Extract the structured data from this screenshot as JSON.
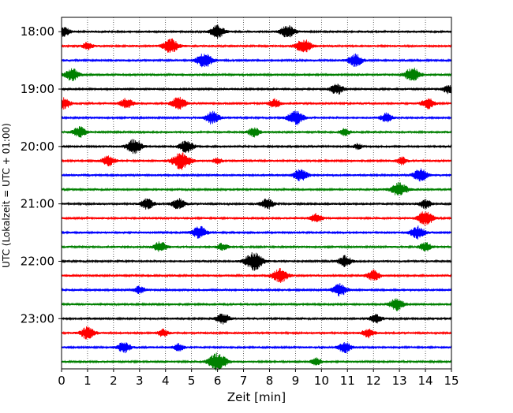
{
  "chart_data": {
    "type": "line",
    "title": "",
    "xlabel": "Zeit  [min]",
    "ylabel": "UTC (Lokalzeit = UTC + 01:00)",
    "xlim": [
      0,
      15
    ],
    "x_ticks": [
      "0",
      "1",
      "2",
      "3",
      "4",
      "5",
      "6",
      "7",
      "8",
      "9",
      "10",
      "11",
      "12",
      "13",
      "14",
      "15"
    ],
    "y_tick_labels": [
      "18:00",
      "19:00",
      "20:00",
      "21:00",
      "22:00",
      "23:00"
    ],
    "grid": "vertical dotted",
    "trace_colors": [
      "#000000",
      "#ff0000",
      "#0000ff",
      "#008000"
    ],
    "traces": [
      {
        "start": "18:00",
        "events": [
          [
            0.1,
            0.5
          ],
          [
            6.0,
            0.7
          ],
          [
            8.7,
            0.7
          ]
        ]
      },
      {
        "start": "18:15",
        "events": [
          [
            1.0,
            0.4
          ],
          [
            4.2,
            0.8
          ],
          [
            9.3,
            0.8
          ]
        ]
      },
      {
        "start": "18:30",
        "events": [
          [
            5.5,
            0.8
          ],
          [
            11.3,
            0.7
          ]
        ]
      },
      {
        "start": "18:45",
        "events": [
          [
            0.4,
            0.7
          ],
          [
            13.5,
            0.8
          ]
        ]
      },
      {
        "start": "19:00",
        "events": [
          [
            10.6,
            0.6
          ],
          [
            14.9,
            0.5
          ]
        ]
      },
      {
        "start": "19:15",
        "events": [
          [
            0.1,
            0.6
          ],
          [
            2.5,
            0.6
          ],
          [
            4.5,
            0.7
          ],
          [
            8.2,
            0.5
          ],
          [
            14.1,
            0.6
          ]
        ]
      },
      {
        "start": "19:30",
        "events": [
          [
            5.8,
            0.7
          ],
          [
            9.0,
            0.8
          ],
          [
            12.5,
            0.5
          ]
        ]
      },
      {
        "start": "19:45",
        "events": [
          [
            0.7,
            0.6
          ],
          [
            7.4,
            0.5
          ],
          [
            10.9,
            0.4
          ]
        ]
      },
      {
        "start": "20:00",
        "events": [
          [
            2.8,
            0.8
          ],
          [
            4.8,
            0.7
          ],
          [
            11.4,
            0.3
          ]
        ]
      },
      {
        "start": "20:15",
        "events": [
          [
            1.8,
            0.6
          ],
          [
            4.6,
            1.0
          ],
          [
            6.0,
            0.3
          ],
          [
            13.1,
            0.4
          ]
        ]
      },
      {
        "start": "20:30",
        "events": [
          [
            9.2,
            0.7
          ],
          [
            13.8,
            0.7
          ]
        ]
      },
      {
        "start": "20:45",
        "events": [
          [
            13.0,
            0.8
          ]
        ]
      },
      {
        "start": "21:00",
        "events": [
          [
            3.3,
            0.6
          ],
          [
            4.5,
            0.6
          ],
          [
            7.9,
            0.6
          ],
          [
            14.0,
            0.5
          ]
        ]
      },
      {
        "start": "21:15",
        "events": [
          [
            9.8,
            0.5
          ],
          [
            14.0,
            0.8
          ]
        ]
      },
      {
        "start": "21:30",
        "events": [
          [
            5.3,
            0.7
          ],
          [
            13.7,
            0.7
          ]
        ]
      },
      {
        "start": "21:45",
        "events": [
          [
            3.8,
            0.6
          ],
          [
            6.2,
            0.4
          ],
          [
            14.0,
            0.5
          ]
        ]
      },
      {
        "start": "22:00",
        "events": [
          [
            7.4,
            1.0
          ],
          [
            10.9,
            0.6
          ]
        ]
      },
      {
        "start": "22:15",
        "events": [
          [
            8.4,
            0.8
          ],
          [
            12.0,
            0.6
          ]
        ]
      },
      {
        "start": "22:30",
        "events": [
          [
            3.0,
            0.4
          ],
          [
            10.7,
            0.7
          ]
        ]
      },
      {
        "start": "22:45",
        "events": [
          [
            12.9,
            0.7
          ]
        ]
      },
      {
        "start": "23:00",
        "events": [
          [
            6.2,
            0.6
          ],
          [
            12.1,
            0.5
          ]
        ]
      },
      {
        "start": "23:15",
        "events": [
          [
            1.0,
            0.7
          ],
          [
            3.9,
            0.4
          ],
          [
            11.8,
            0.5
          ]
        ]
      },
      {
        "start": "23:30",
        "events": [
          [
            2.4,
            0.6
          ],
          [
            4.5,
            0.4
          ],
          [
            10.9,
            0.6
          ]
        ]
      },
      {
        "start": "23:45",
        "events": [
          [
            6.0,
            1.0
          ],
          [
            9.8,
            0.4
          ]
        ]
      }
    ]
  }
}
